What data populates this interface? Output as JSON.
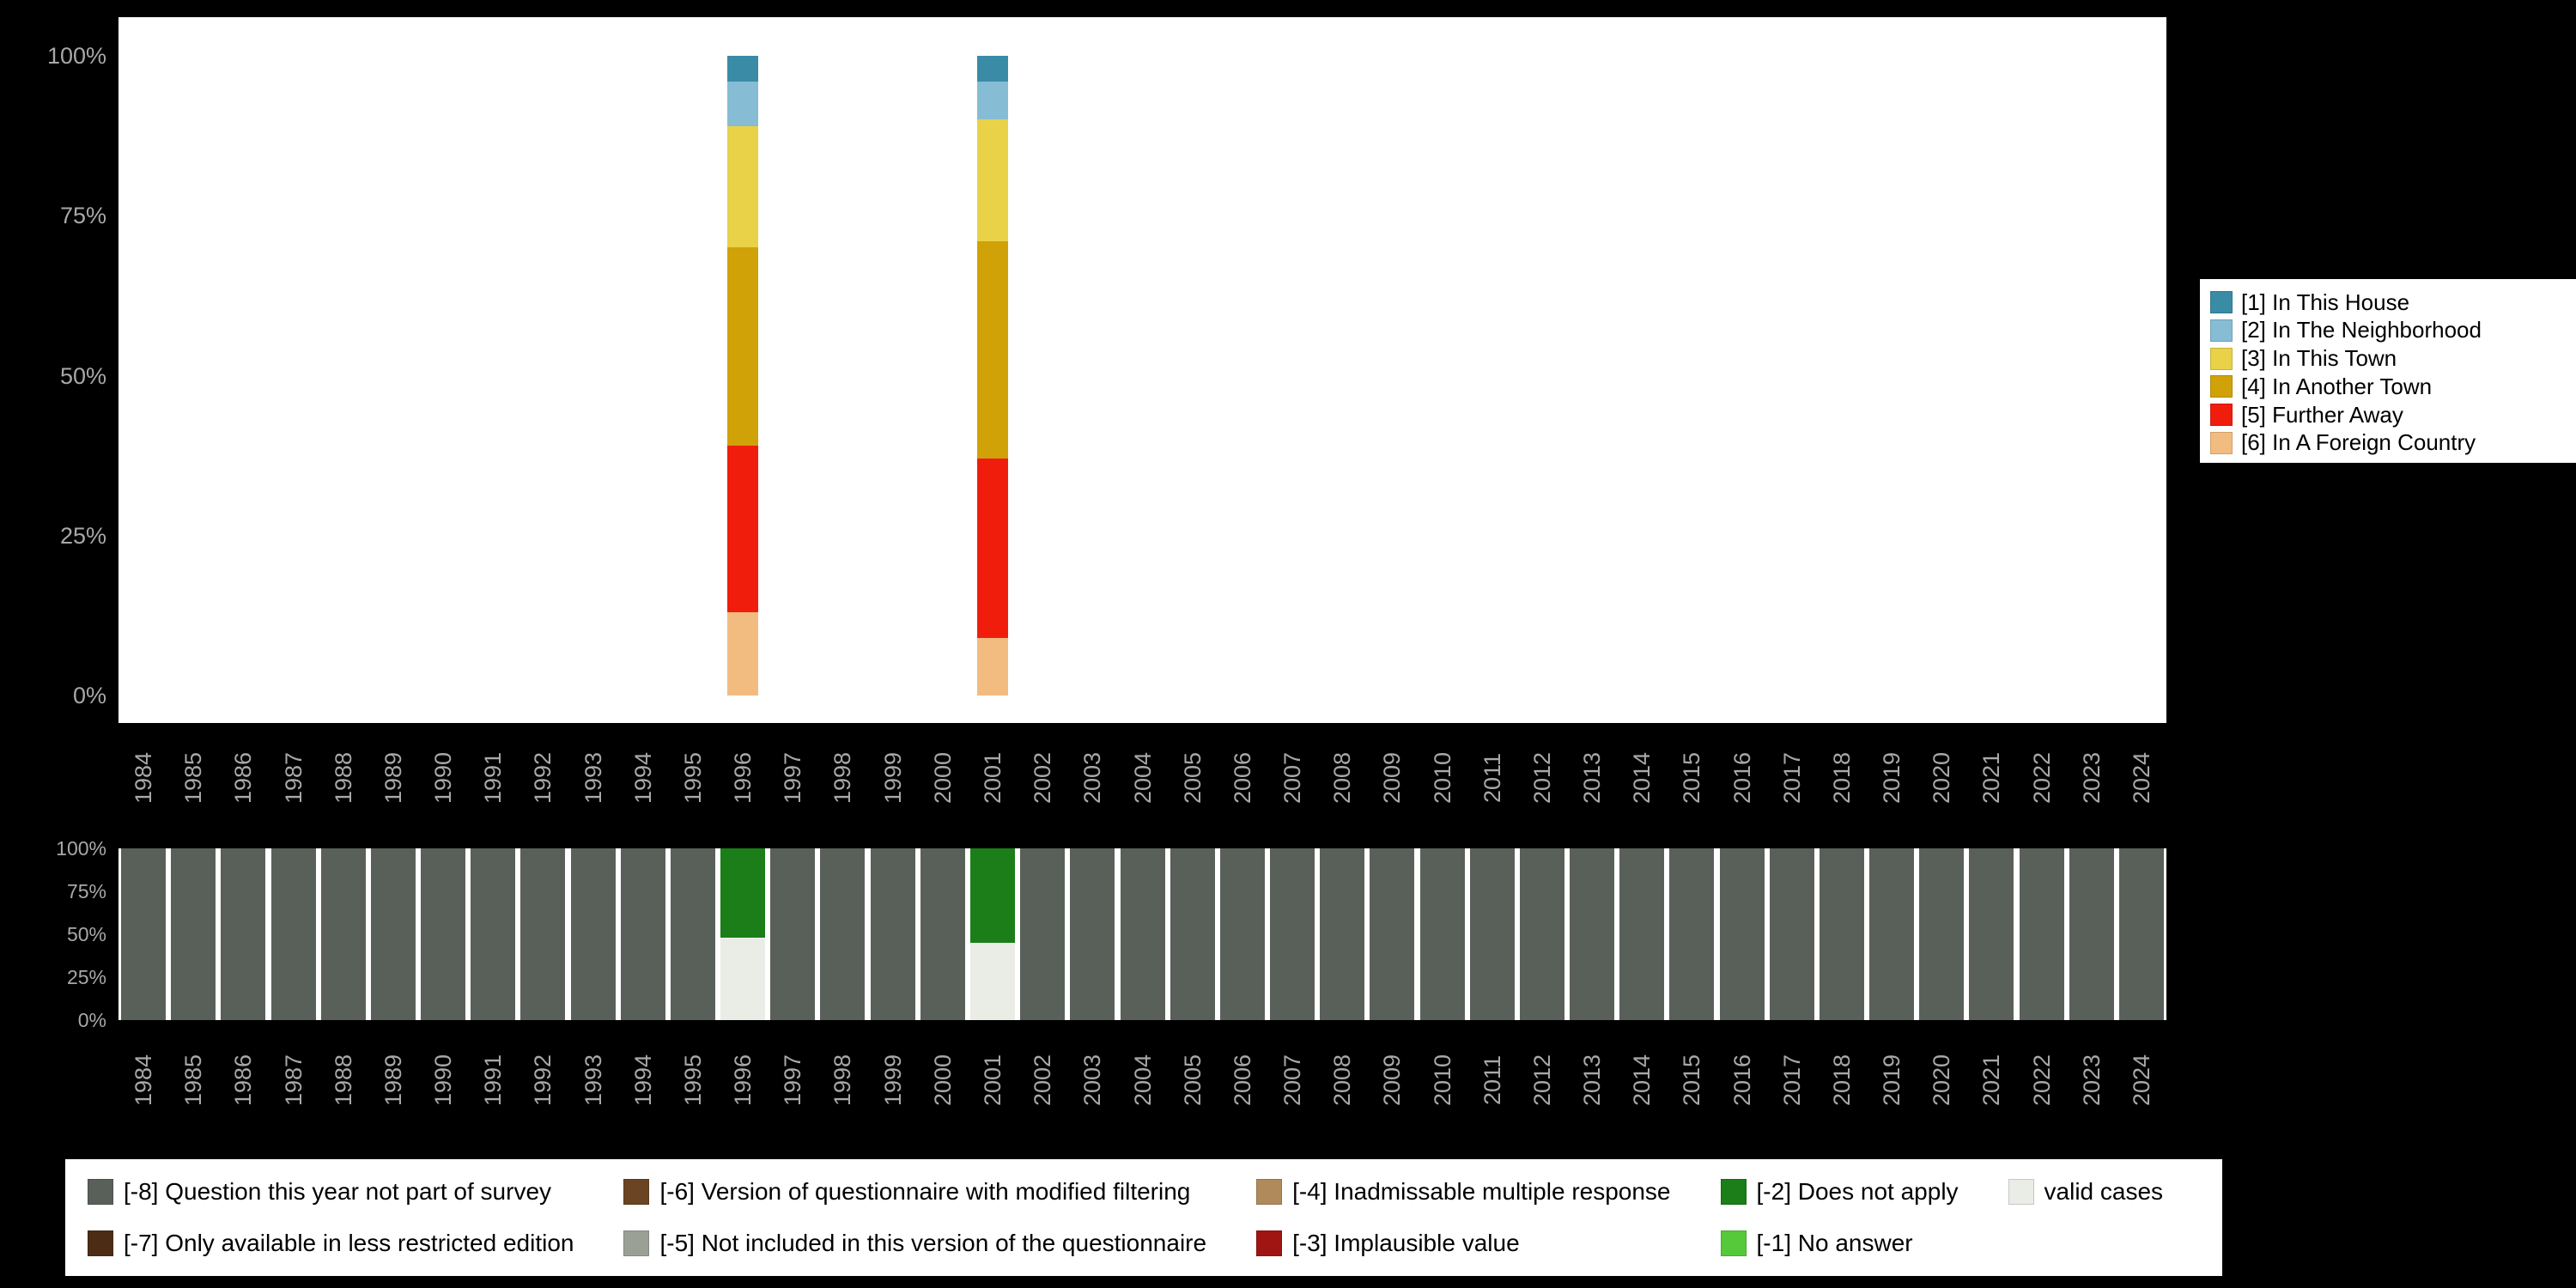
{
  "style": {
    "page_background": "#000000",
    "plot_background": "#ffffff",
    "axis_text_color": "#a8a8a8",
    "legend_background": "#ffffff",
    "legend_text_color": "#000000"
  },
  "chart_data": [
    {
      "type": "bar",
      "stacked": true,
      "title": "",
      "xlabel": "",
      "ylabel": "",
      "ylim": [
        0,
        100
      ],
      "grid": false,
      "legend_position": "right",
      "y_ticks": [
        "100%",
        "75%",
        "50%",
        "25%",
        "0%"
      ],
      "categories": [
        1984,
        1985,
        1986,
        1987,
        1988,
        1989,
        1990,
        1991,
        1992,
        1993,
        1994,
        1995,
        1996,
        1997,
        1998,
        1999,
        2000,
        2001,
        2002,
        2003,
        2004,
        2005,
        2006,
        2007,
        2008,
        2009,
        2010,
        2011,
        2012,
        2013,
        2014,
        2015,
        2016,
        2017,
        2018,
        2019,
        2020,
        2021,
        2022,
        2023,
        2024
      ],
      "series": [
        {
          "name": "[1] In This House",
          "color": "#3a8ba6",
          "default_value": 0,
          "values_by_year": {
            "1996": 4,
            "2001": 4
          }
        },
        {
          "name": "[2] In The Neighborhood",
          "color": "#86bcd4",
          "default_value": 0,
          "values_by_year": {
            "1996": 7,
            "2001": 6
          }
        },
        {
          "name": "[3] In This Town",
          "color": "#e9d148",
          "default_value": 0,
          "values_by_year": {
            "1996": 19,
            "2001": 19
          }
        },
        {
          "name": "[4] In Another Town",
          "color": "#d0a207",
          "default_value": 0,
          "values_by_year": {
            "1996": 31,
            "2001": 34
          }
        },
        {
          "name": "[5] Further Away",
          "color": "#f01d0d",
          "default_value": 0,
          "values_by_year": {
            "1996": 26,
            "2001": 28
          }
        },
        {
          "name": "[6] In A Foreign Country",
          "color": "#f2bc80",
          "default_value": 0,
          "values_by_year": {
            "1996": 13,
            "2001": 9
          }
        }
      ]
    },
    {
      "type": "bar",
      "stacked": true,
      "title": "",
      "xlabel": "",
      "ylabel": "",
      "ylim": [
        0,
        100
      ],
      "grid": false,
      "legend_position": "bottom",
      "y_ticks": [
        "100%",
        "75%",
        "50%",
        "25%",
        "0%"
      ],
      "categories": [
        1984,
        1985,
        1986,
        1987,
        1988,
        1989,
        1990,
        1991,
        1992,
        1993,
        1994,
        1995,
        1996,
        1997,
        1998,
        1999,
        2000,
        2001,
        2002,
        2003,
        2004,
        2005,
        2006,
        2007,
        2008,
        2009,
        2010,
        2011,
        2012,
        2013,
        2014,
        2015,
        2016,
        2017,
        2018,
        2019,
        2020,
        2021,
        2022,
        2023,
        2024
      ],
      "series": [
        {
          "name": "[-8] Question this year not part of survey",
          "color": "#596059",
          "default_value": 100,
          "values_by_year": {
            "1996": 0,
            "2001": 0
          }
        },
        {
          "name": "[-2] Does not apply",
          "color": "#1b7e18",
          "default_value": 0,
          "values_by_year": {
            "1996": 52,
            "2001": 55
          }
        },
        {
          "name": "valid cases",
          "color": "#e9ede6",
          "default_value": 0,
          "values_by_year": {
            "1996": 48,
            "2001": 45
          }
        }
      ]
    }
  ],
  "missing_legend": {
    "items": [
      {
        "label": "[-8] Question this year not part of survey",
        "color": "#596059"
      },
      {
        "label": "[-7] Only available in less restricted edition",
        "color": "#4d2c15"
      },
      {
        "label": "[-6] Version of questionnaire with modified filtering",
        "color": "#6b4423"
      },
      {
        "label": "[-5] Not included in this version of the questionnaire",
        "color": "#9aa095"
      },
      {
        "label": "[-4] Inadmissable multiple response",
        "color": "#b08a5a"
      },
      {
        "label": "[-3] Implausible value",
        "color": "#a01511"
      },
      {
        "label": "[-2] Does not apply",
        "color": "#1b7e18"
      },
      {
        "label": "[-1] No answer",
        "color": "#55c93a"
      },
      {
        "label": "valid cases",
        "color": "#e9ede6"
      }
    ]
  }
}
